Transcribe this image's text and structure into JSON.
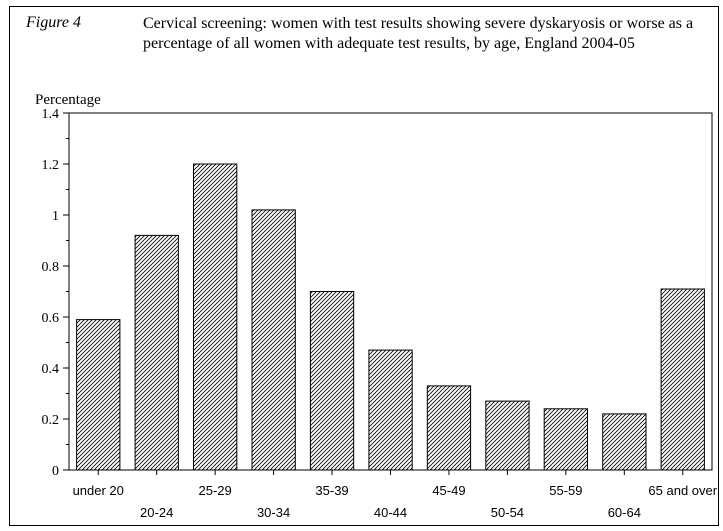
{
  "figure": {
    "label": "Figure 4",
    "title": "Cervical screening: women with test results showing severe dyskaryosis or worse as a percentage of all women with adequate test results, by age, England 2004-05"
  },
  "chart_data": {
    "type": "bar",
    "title": "Cervical screening: women with test results showing severe dyskaryosis or worse as a percentage of all women with adequate test results, by age, England 2004-05",
    "xlabel": "",
    "ylabel": "Percentage",
    "categories": [
      "under 20",
      "20-24",
      "25-29",
      "30-34",
      "35-39",
      "40-44",
      "45-49",
      "50-54",
      "55-59",
      "60-64",
      "65 and over"
    ],
    "values": [
      0.59,
      0.92,
      1.2,
      1.02,
      0.7,
      0.47,
      0.33,
      0.27,
      0.24,
      0.22,
      0.71
    ],
    "ylim": [
      0,
      1.4
    ],
    "yticks": [
      "0",
      "0.2",
      "0.4",
      "0.6",
      "0.8",
      "1",
      "1.2",
      "1.4"
    ],
    "grid": false,
    "bar_fill": "diagonal-hatch",
    "colors": {
      "bar_stroke": "#000000",
      "hatch": "#000000",
      "background": "#ffffff"
    }
  }
}
